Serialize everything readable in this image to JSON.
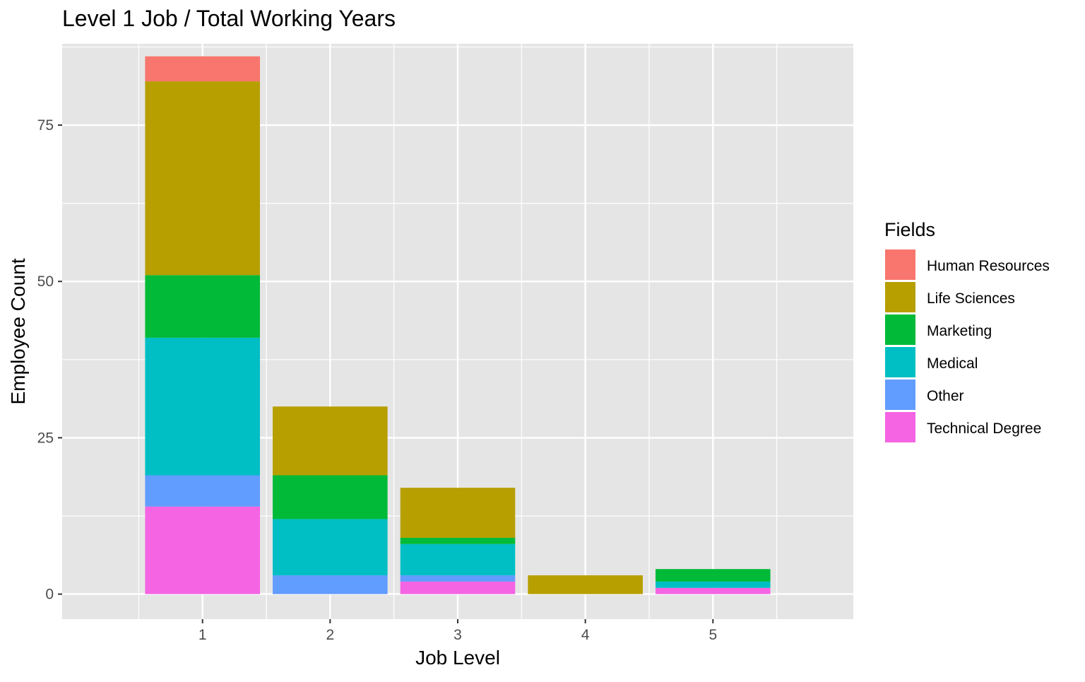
{
  "chart_data": {
    "type": "bar",
    "stacked": true,
    "title": "Level 1 Job / Total Working Years",
    "xlabel": "Job Level",
    "ylabel": "Employee Count",
    "categories": [
      "1",
      "2",
      "3",
      "4",
      "5"
    ],
    "ylim": [
      -4,
      88
    ],
    "yticks": [
      0,
      25,
      50,
      75
    ],
    "grid": true,
    "legend": {
      "title": "Fields",
      "placement": "right"
    },
    "series": [
      {
        "name": "Technical Degree",
        "color": "#F564E3",
        "values": [
          14,
          0,
          2,
          0,
          1
        ]
      },
      {
        "name": "Other",
        "color": "#619CFF",
        "values": [
          5,
          3,
          1,
          0,
          0
        ]
      },
      {
        "name": "Medical",
        "color": "#00BFC4",
        "values": [
          22,
          9,
          5,
          0,
          1
        ]
      },
      {
        "name": "Marketing",
        "color": "#00BA38",
        "values": [
          10,
          7,
          1,
          0,
          2
        ]
      },
      {
        "name": "Life Sciences",
        "color": "#B79F00",
        "values": [
          31,
          11,
          8,
          3,
          0
        ]
      },
      {
        "name": "Human Resources",
        "color": "#F8766D",
        "values": [
          4,
          0,
          0,
          0,
          0
        ]
      }
    ],
    "legend_order": [
      "Human Resources",
      "Life Sciences",
      "Marketing",
      "Medical",
      "Other",
      "Technical Degree"
    ]
  }
}
